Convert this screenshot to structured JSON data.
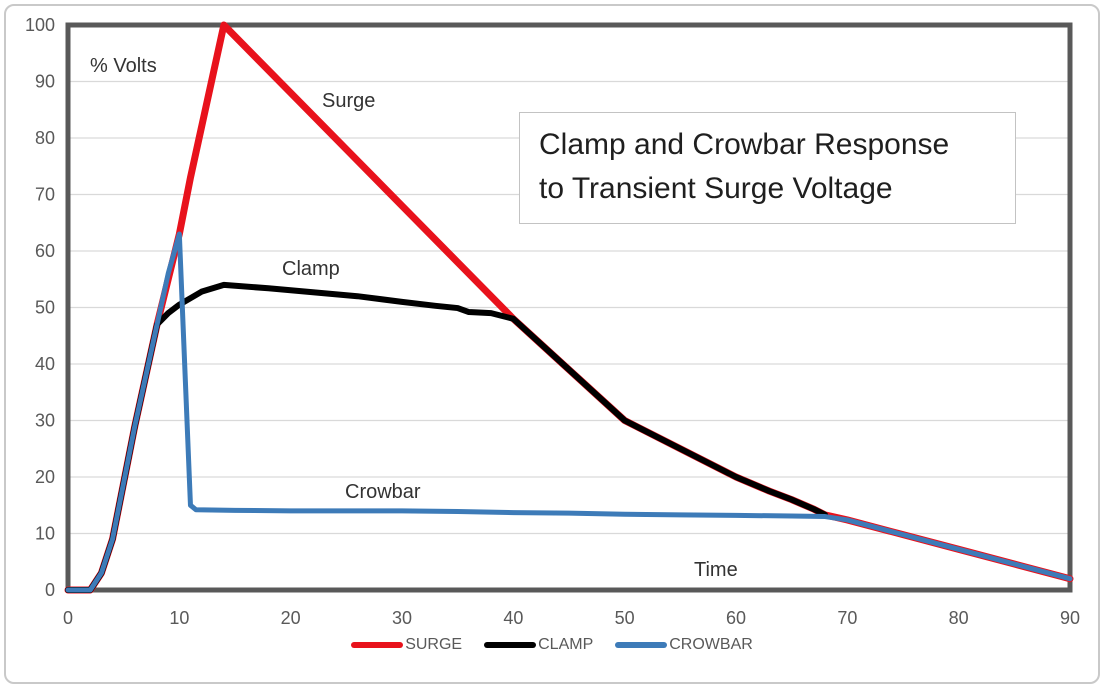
{
  "figure": {
    "background": "#ffffff",
    "outer_border_color": "#c9c9c9"
  },
  "chart_data": {
    "type": "line",
    "title": "Clamp and Crowbar Response to Transient Surge Voltage",
    "title_lines": [
      "Clamp and Crowbar Response",
      "to Transient Surge Voltage"
    ],
    "y_axis_label": "% Volts",
    "x_axis_label": "Time",
    "xlim": [
      0,
      90
    ],
    "ylim": [
      0,
      100
    ],
    "x_ticks": [
      "0",
      "10",
      "20",
      "30",
      "40",
      "50",
      "60",
      "70",
      "80",
      "90"
    ],
    "y_ticks": [
      "0",
      "10",
      "20",
      "30",
      "40",
      "50",
      "60",
      "70",
      "80",
      "90",
      "100"
    ],
    "grid": "horizontal gridlines only",
    "legend_position": "bottom-center",
    "axis_color": "#595959",
    "gridline_color": "#d9d9d9",
    "tick_label_color": "#595959",
    "series": [
      {
        "name": "SURGE",
        "color": "#e8121c",
        "stroke_width": 7,
        "points": [
          [
            0,
            0
          ],
          [
            2,
            0
          ],
          [
            3,
            3
          ],
          [
            4,
            9
          ],
          [
            5,
            19
          ],
          [
            6,
            29
          ],
          [
            7,
            38
          ],
          [
            8,
            47
          ],
          [
            9,
            55
          ],
          [
            10,
            63
          ],
          [
            11,
            73
          ],
          [
            12,
            82
          ],
          [
            13,
            91
          ],
          [
            14,
            100
          ],
          [
            20,
            88
          ],
          [
            25,
            78
          ],
          [
            30,
            68
          ],
          [
            35,
            58
          ],
          [
            40,
            48
          ],
          [
            45,
            39
          ],
          [
            50,
            30
          ],
          [
            55,
            25
          ],
          [
            60,
            20
          ],
          [
            63,
            17.5
          ],
          [
            65,
            16
          ],
          [
            67,
            14.3
          ],
          [
            68,
            13.3
          ],
          [
            70,
            12.4
          ],
          [
            75,
            9.8
          ],
          [
            80,
            7.2
          ],
          [
            85,
            4.6
          ],
          [
            90,
            2
          ]
        ]
      },
      {
        "name": "CLAMP",
        "color": "#000000",
        "stroke_width": 6,
        "points": [
          [
            0,
            0
          ],
          [
            2,
            0
          ],
          [
            3,
            3
          ],
          [
            4,
            9
          ],
          [
            5,
            19
          ],
          [
            6,
            29
          ],
          [
            7,
            38
          ],
          [
            8,
            47
          ],
          [
            9,
            49
          ],
          [
            10,
            50.5
          ],
          [
            12,
            52.8
          ],
          [
            14,
            54
          ],
          [
            18,
            53.4
          ],
          [
            22,
            52.7
          ],
          [
            26,
            52
          ],
          [
            30,
            51
          ],
          [
            33,
            50.3
          ],
          [
            35,
            49.9
          ],
          [
            36,
            49.2
          ],
          [
            38,
            49
          ],
          [
            40,
            48
          ],
          [
            45,
            39
          ],
          [
            50,
            30
          ],
          [
            55,
            25
          ],
          [
            60,
            20
          ],
          [
            63,
            17.5
          ],
          [
            65,
            16
          ],
          [
            67,
            14.3
          ],
          [
            68,
            13.3
          ]
        ]
      },
      {
        "name": "CROWBAR",
        "color": "#3d7bb8",
        "stroke_width": 5,
        "points": [
          [
            0,
            0
          ],
          [
            2,
            0
          ],
          [
            3,
            3
          ],
          [
            4,
            9
          ],
          [
            5,
            19
          ],
          [
            6,
            29
          ],
          [
            7,
            38
          ],
          [
            8,
            47
          ],
          [
            9,
            56
          ],
          [
            10,
            63
          ],
          [
            11,
            15
          ],
          [
            11.5,
            14.2
          ],
          [
            15,
            14.1
          ],
          [
            20,
            14
          ],
          [
            25,
            14
          ],
          [
            30,
            14
          ],
          [
            35,
            13.9
          ],
          [
            40,
            13.7
          ],
          [
            45,
            13.6
          ],
          [
            50,
            13.4
          ],
          [
            55,
            13.3
          ],
          [
            60,
            13.2
          ],
          [
            65,
            13.1
          ],
          [
            68,
            13
          ],
          [
            70,
            12.4
          ],
          [
            75,
            9.8
          ],
          [
            80,
            7.2
          ],
          [
            85,
            4.6
          ],
          [
            90,
            2
          ]
        ]
      }
    ],
    "annotations": {
      "surge": "Surge",
      "clamp": "Clamp",
      "crowbar": "Crowbar"
    }
  }
}
